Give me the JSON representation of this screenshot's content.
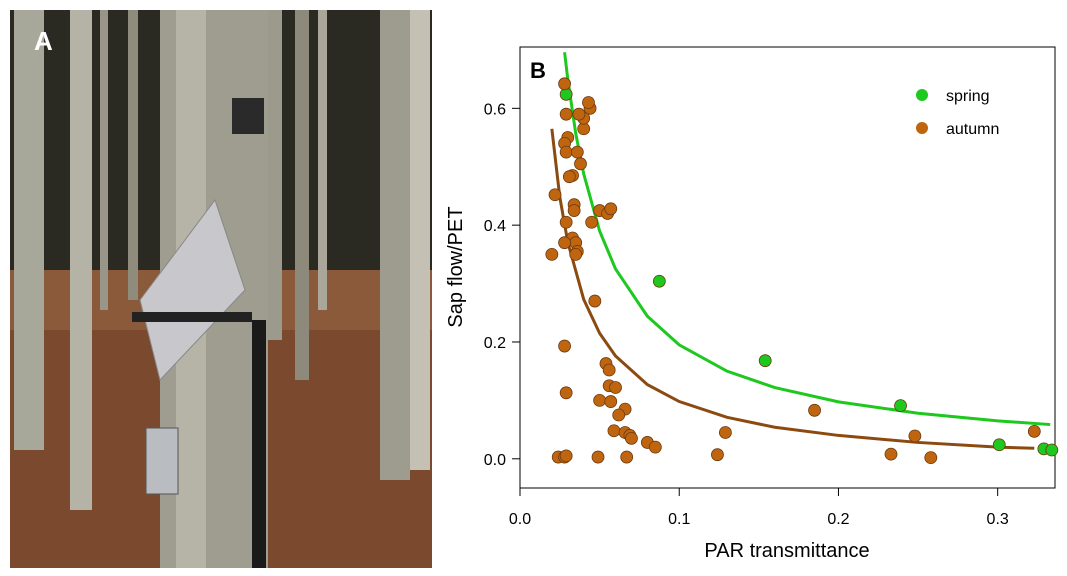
{
  "panel_a": {
    "label": "A"
  },
  "chart_data": {
    "type": "scatter",
    "panel_label": "B",
    "x_label": "PAR transmittance",
    "y_label": "Sap flow/PET",
    "xlim": [
      0,
      0.336
    ],
    "ylim": [
      -0.05,
      0.705
    ],
    "xticks": [
      {
        "value": 0,
        "label": "0.0"
      },
      0.1,
      0.2,
      0.3
    ],
    "yticks": [
      {
        "value": 0,
        "label": "0.0"
      },
      0.2,
      0.4,
      0.6
    ],
    "legend": "top-right",
    "series": [
      {
        "name": "spring",
        "color": "#1ec81e",
        "x": [
          0.029,
          0.0875,
          0.154,
          0.239,
          0.301,
          0.329,
          0.334
        ],
        "values": [
          0.624,
          0.304,
          0.168,
          0.091,
          0.024,
          0.017,
          0.015
        ]
      },
      {
        "name": "autumn",
        "color": "#c0650f",
        "x": [
          0.028,
          0.029,
          0.03,
          0.028,
          0.029,
          0.033,
          0.031,
          0.036,
          0.038,
          0.04,
          0.04,
          0.044,
          0.043,
          0.037,
          0.022,
          0.05,
          0.055,
          0.057,
          0.034,
          0.034,
          0.045,
          0.029,
          0.033,
          0.035,
          0.028,
          0.036,
          0.035,
          0.02,
          0.047,
          0.028,
          0.054,
          0.056,
          0.056,
          0.06,
          0.029,
          0.05,
          0.057,
          0.066,
          0.062,
          0.059,
          0.066,
          0.069,
          0.07,
          0.08,
          0.085,
          0.024,
          0.028,
          0.029,
          0.049,
          0.067,
          0.124,
          0.129,
          0.185,
          0.233,
          0.248,
          0.258,
          0.323
        ],
        "values": [
          0.642,
          0.59,
          0.55,
          0.54,
          0.525,
          0.485,
          0.483,
          0.525,
          0.505,
          0.565,
          0.583,
          0.6,
          0.61,
          0.59,
          0.452,
          0.425,
          0.42,
          0.428,
          0.435,
          0.425,
          0.405,
          0.405,
          0.378,
          0.37,
          0.37,
          0.355,
          0.35,
          0.35,
          0.27,
          0.193,
          0.163,
          0.152,
          0.125,
          0.122,
          0.113,
          0.1,
          0.098,
          0.085,
          0.075,
          0.048,
          0.045,
          0.04,
          0.035,
          0.028,
          0.02,
          0.003,
          0.003,
          0.005,
          0.003,
          0.003,
          0.007,
          0.045,
          0.083,
          0.008,
          0.039,
          0.002,
          0.047
        ]
      }
    ],
    "fits": [
      {
        "color": "#1ec81e",
        "x": [
          0.028,
          0.03,
          0.035,
          0.04,
          0.05,
          0.06,
          0.08,
          0.1,
          0.13,
          0.16,
          0.2,
          0.25,
          0.3,
          0.333
        ],
        "values": [
          0.696,
          0.65,
          0.557,
          0.488,
          0.39,
          0.325,
          0.244,
          0.195,
          0.15,
          0.122,
          0.0975,
          0.078,
          0.065,
          0.0586
        ]
      },
      {
        "color": "#8b4a10",
        "x": [
          0.02,
          0.025,
          0.03,
          0.04,
          0.05,
          0.06,
          0.08,
          0.1,
          0.13,
          0.16,
          0.2,
          0.25,
          0.3,
          0.323
        ],
        "values": [
          0.565,
          0.448,
          0.371,
          0.273,
          0.215,
          0.176,
          0.127,
          0.098,
          0.071,
          0.054,
          0.04,
          0.028,
          0.02,
          0.018
        ]
      }
    ]
  }
}
